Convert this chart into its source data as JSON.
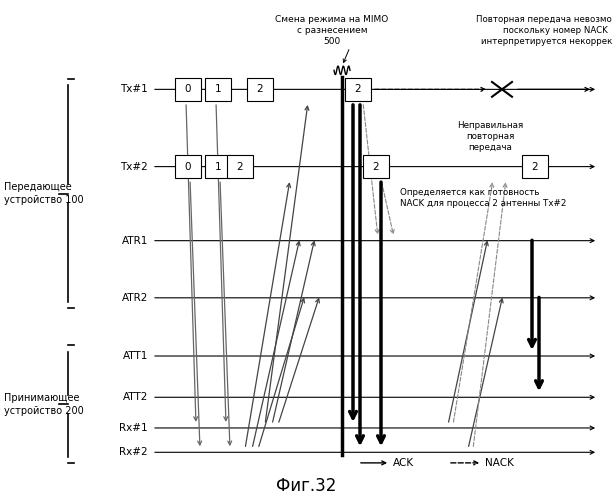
{
  "title": "Фиг.32",
  "bg_color": "#ffffff",
  "rows": [
    "Tx#1",
    "Tx#2",
    "ATR1",
    "ATR2",
    "ATT1",
    "ATT2",
    "Rx#1",
    "Rx#2"
  ],
  "label_tx": "Передающее\nустройство 100",
  "label_rx": "Принимающее\nустройство 200",
  "annot_mimo": "Смена режима на MIMO\nс разнесением\n500",
  "annot_retx_fail": "Повторная передача невозможна,\nпоскольку номер NACK\nинтерпретируется некорректно",
  "annot_wrong": "Неправильная\nповторная\nпередача",
  "annot_nack_ready": "Определяется как готовность\nNACK для процесса 2 антенны Tx#2"
}
